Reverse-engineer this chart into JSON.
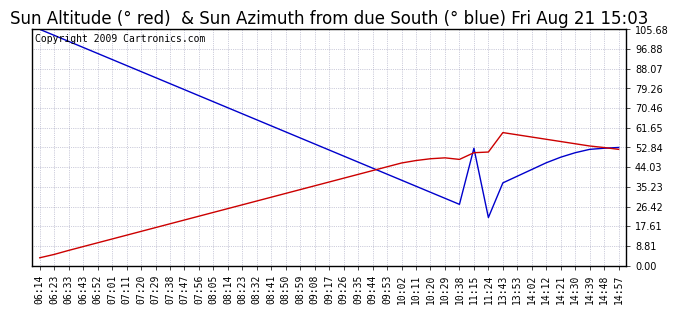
{
  "title": "Sun Altitude (° red)  & Sun Azimuth from due South (° blue) Fri Aug 21 15:03",
  "copyright": "Copyright 2009 Cartronics.com",
  "yticks": [
    0.0,
    8.81,
    17.61,
    26.42,
    35.23,
    44.03,
    52.84,
    61.65,
    70.46,
    79.26,
    88.07,
    96.88,
    105.68
  ],
  "ylim": [
    0.0,
    105.68
  ],
  "xtick_labels": [
    "06:14",
    "06:23",
    "06:33",
    "06:43",
    "06:52",
    "07:01",
    "07:11",
    "07:20",
    "07:29",
    "07:38",
    "07:47",
    "07:56",
    "08:05",
    "08:14",
    "08:23",
    "08:32",
    "08:41",
    "08:50",
    "08:59",
    "09:08",
    "09:17",
    "09:26",
    "09:35",
    "09:44",
    "09:53",
    "10:02",
    "10:11",
    "10:20",
    "10:29",
    "10:38",
    "11:15",
    "11:24",
    "13:43",
    "13:53",
    "14:02",
    "14:12",
    "14:21",
    "14:30",
    "14:39",
    "14:48",
    "14:57"
  ],
  "blue_y": [
    105.68,
    103.0,
    100.3,
    97.6,
    94.9,
    92.2,
    89.5,
    86.8,
    84.1,
    81.4,
    78.7,
    76.0,
    73.3,
    70.6,
    67.9,
    65.2,
    62.5,
    59.8,
    57.1,
    54.4,
    51.7,
    49.0,
    46.3,
    43.6,
    40.9,
    38.2,
    35.5,
    32.8,
    30.1,
    27.4,
    52.5,
    21.5,
    37.0,
    40.0,
    43.0,
    46.0,
    48.5,
    50.5,
    52.0,
    52.5,
    52.84
  ],
  "red_y": [
    3.5,
    5.0,
    6.8,
    8.5,
    10.2,
    11.9,
    13.6,
    15.3,
    17.0,
    18.7,
    20.4,
    22.1,
    23.8,
    25.5,
    27.2,
    28.9,
    30.6,
    32.3,
    34.0,
    35.7,
    37.4,
    39.1,
    40.8,
    42.5,
    44.2,
    45.9,
    47.0,
    47.8,
    48.2,
    47.5,
    50.5,
    50.8,
    59.5,
    58.5,
    57.5,
    56.5,
    55.5,
    54.5,
    53.5,
    52.8,
    52.0
  ],
  "line_color_blue": "#0000cc",
  "line_color_red": "#cc0000",
  "bg_color": "#ffffff",
  "grid_color": "#8888aa",
  "title_fontsize": 12,
  "copyright_fontsize": 7,
  "tick_fontsize": 7
}
